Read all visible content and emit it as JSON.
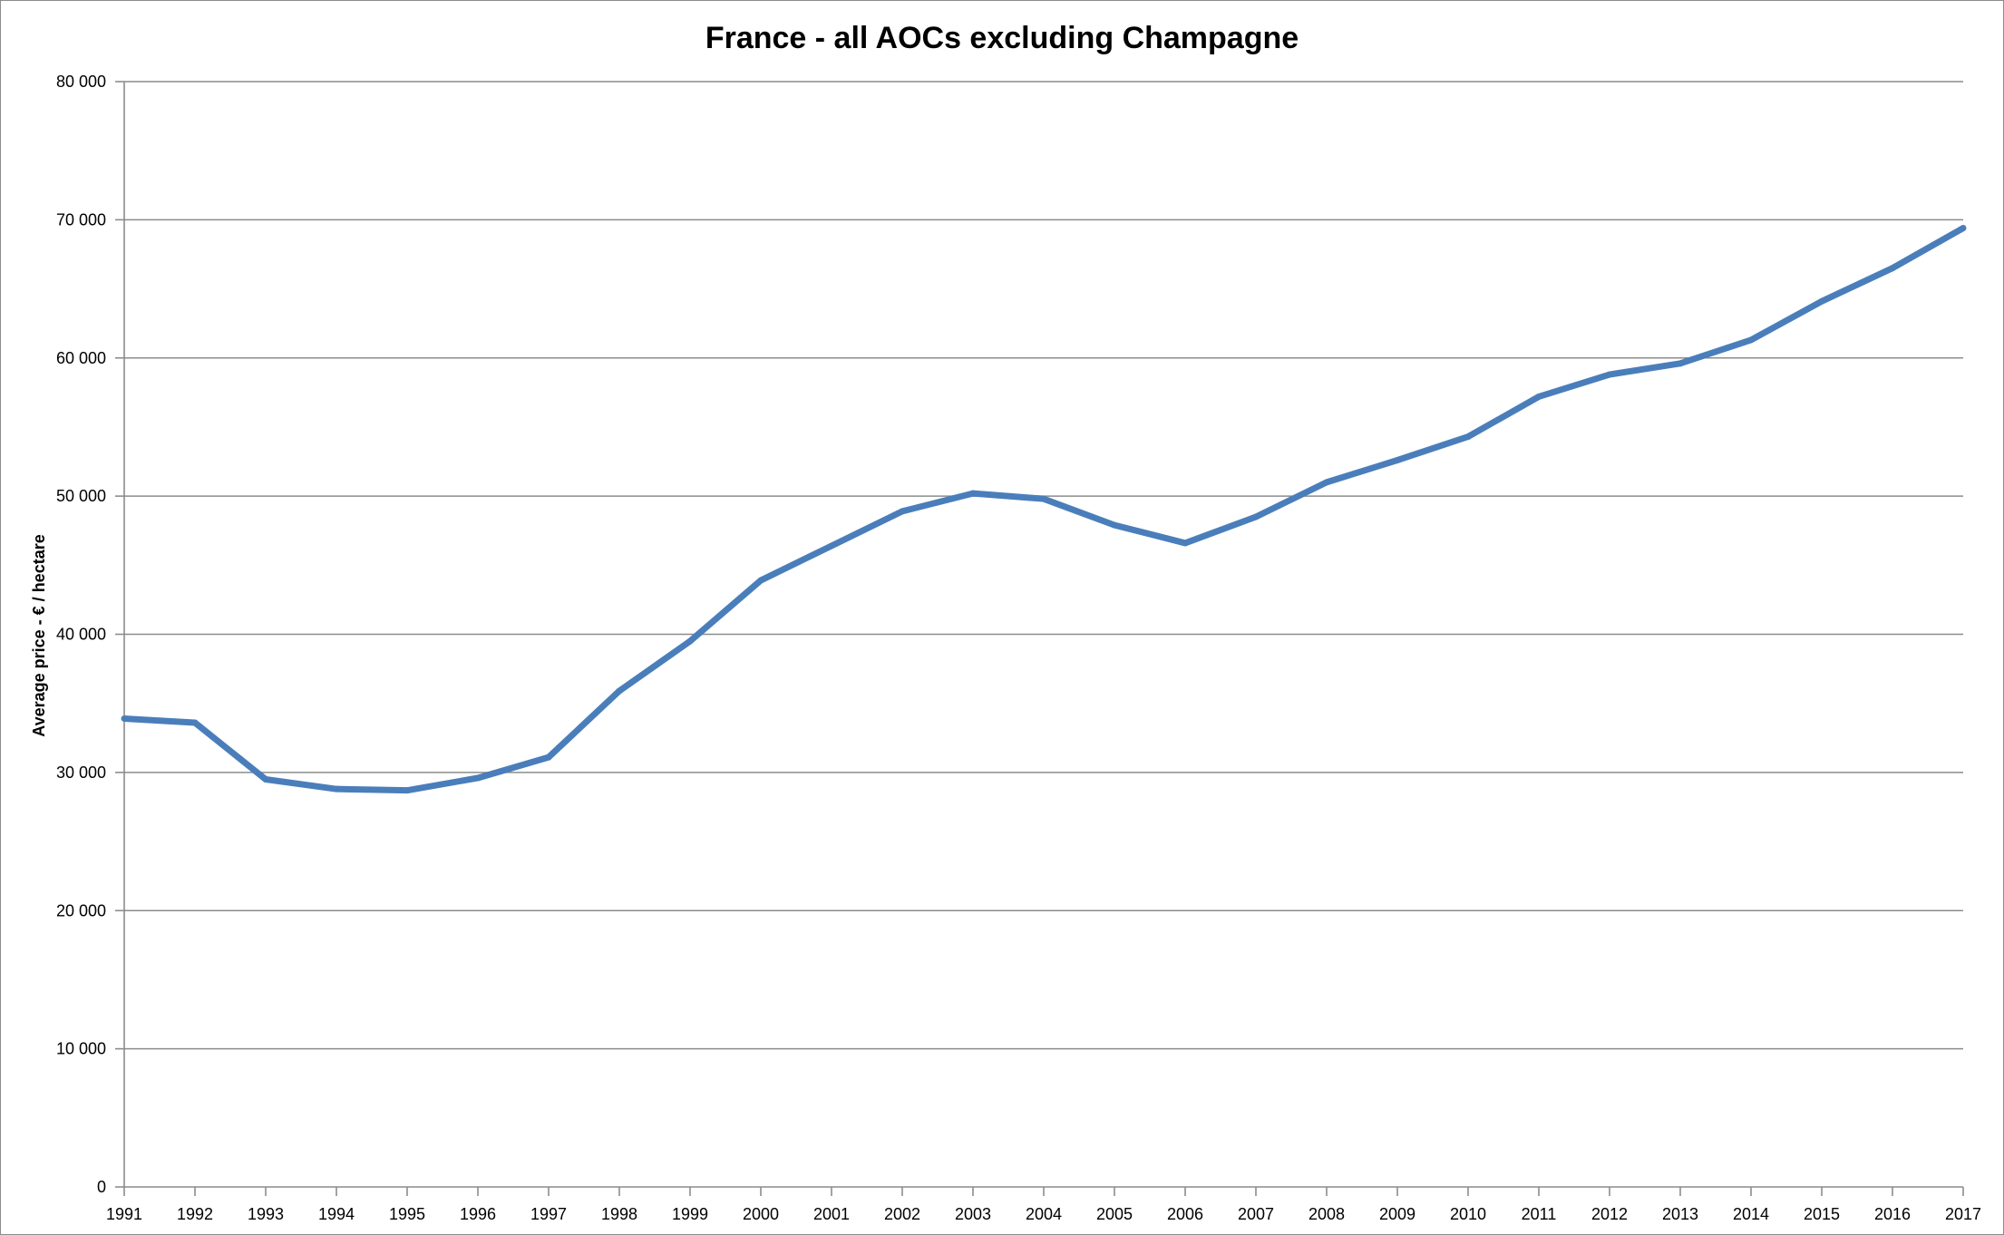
{
  "chart_data": {
    "type": "line",
    "title": "France - all AOCs excluding Champagne",
    "xlabel": "",
    "ylabel": "Average price - € / hectare",
    "ylim": [
      0,
      80000
    ],
    "y_ticks": [
      0,
      10000,
      20000,
      30000,
      40000,
      50000,
      60000,
      70000,
      80000
    ],
    "y_tick_labels": [
      "0",
      "10 000",
      "20 000",
      "30 000",
      "40 000",
      "50 000",
      "60 000",
      "70 000",
      "80 000"
    ],
    "grid": true,
    "legend": "none",
    "line_color": "#4a7ebb",
    "categories": [
      "1991",
      "1992",
      "1993",
      "1994",
      "1995",
      "1996",
      "1997",
      "1998",
      "1999",
      "2000",
      "2001",
      "2002",
      "2003",
      "2004",
      "2005",
      "2006",
      "2007",
      "2008",
      "2009",
      "2010",
      "2011",
      "2012",
      "2013",
      "2014",
      "2015",
      "2016",
      "2017"
    ],
    "series": [
      {
        "values": [
          33900,
          33600,
          29500,
          28800,
          28700,
          29600,
          31100,
          35900,
          39500,
          43900,
          46400,
          48900,
          50200,
          49800,
          47900,
          46600,
          48500,
          51000,
          52600,
          54300,
          57200,
          58800,
          59600,
          61300,
          64100,
          66500,
          69400
        ]
      }
    ]
  }
}
